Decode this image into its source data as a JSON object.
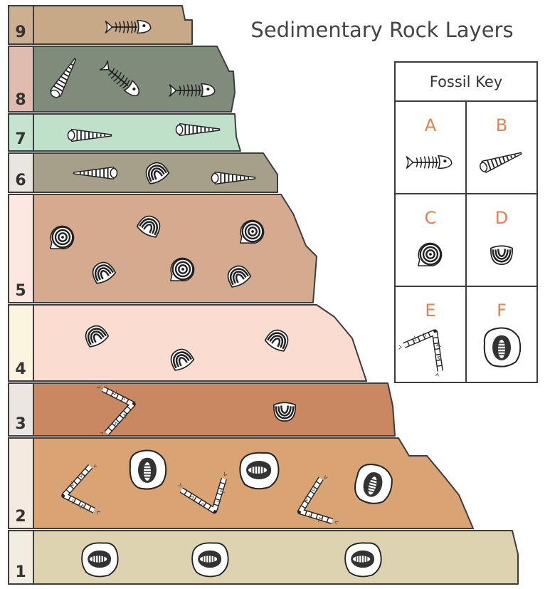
{
  "title": "Sedimentary Rock Layers",
  "fossil_key": {
    "title": "Fossil Key",
    "items": [
      "A",
      "B",
      "C",
      "D",
      "E",
      "F"
    ]
  },
  "layers": [
    9,
    8,
    7,
    6,
    5,
    4,
    3,
    2,
    1
  ]
}
